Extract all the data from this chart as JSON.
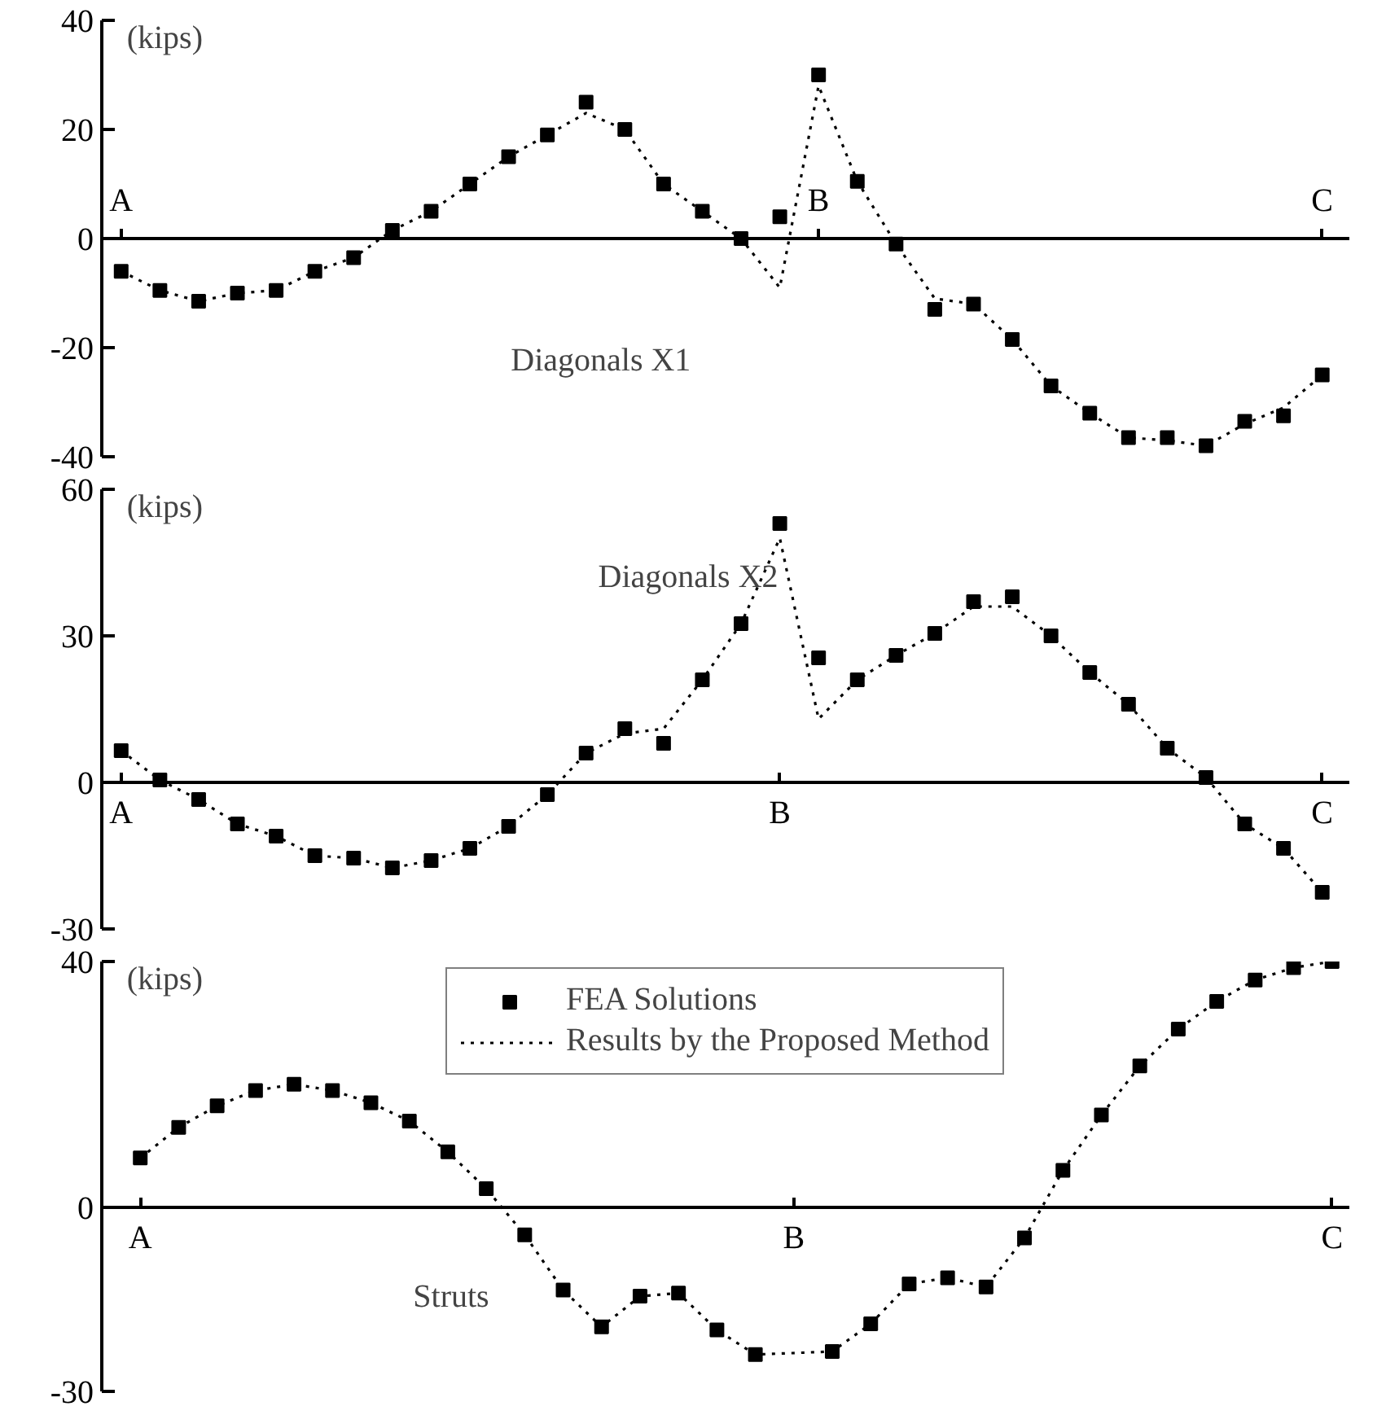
{
  "chart_data": [
    {
      "type": "line",
      "title": "Diagonals X1",
      "ylabel": "(kips)",
      "ylim": [
        -40,
        40
      ],
      "yticks": [
        -40,
        -20,
        0,
        20,
        40
      ],
      "grid": false,
      "legend": false,
      "categories": [
        "A",
        null,
        null,
        null,
        null,
        null,
        null,
        null,
        null,
        null,
        null,
        null,
        null,
        null,
        null,
        null,
        null,
        null,
        "B",
        null,
        null,
        null,
        null,
        null,
        null,
        null,
        null,
        null,
        null,
        null,
        null,
        "C"
      ],
      "series": [
        {
          "type": "scatter",
          "marker": "square",
          "color": "#000000",
          "values": [
            -6,
            -9.5,
            -11.5,
            -10,
            -9.5,
            -6,
            -3.5,
            1.5,
            5,
            10,
            15,
            19,
            25,
            20,
            10,
            5,
            0,
            4,
            30,
            10.5,
            -1,
            -13,
            -12,
            -18.5,
            -27,
            -32,
            -36.5,
            -36.5,
            -38,
            -33.5,
            -32.5,
            -25
          ]
        },
        {
          "line_style": "dotted",
          "marker": "none",
          "color": "#000000",
          "values": [
            -6,
            -9.5,
            -11.5,
            -10,
            -9.5,
            -6,
            -3.5,
            1.5,
            5,
            10,
            15,
            19,
            23,
            20,
            10,
            5,
            0,
            -9,
            28,
            10.5,
            -1,
            -11,
            -12,
            -18.5,
            -27,
            -32,
            -36.5,
            -37,
            -38,
            -34,
            -31,
            -25
          ]
        }
      ]
    },
    {
      "type": "line",
      "title": "Diagonals X2",
      "ylabel": "(kips)",
      "ylim": [
        -30,
        60
      ],
      "yticks": [
        -30,
        0,
        30,
        60
      ],
      "grid": false,
      "legend": false,
      "categories": [
        "A",
        null,
        null,
        null,
        null,
        null,
        null,
        null,
        null,
        null,
        null,
        null,
        null,
        null,
        null,
        null,
        null,
        "B",
        null,
        null,
        null,
        null,
        null,
        null,
        null,
        null,
        null,
        null,
        null,
        null,
        null,
        "C"
      ],
      "series": [
        {
          "type": "scatter",
          "marker": "square",
          "color": "#000000",
          "values": [
            6.5,
            0.5,
            -3.5,
            -8.5,
            -11,
            -15,
            -15.5,
            -17.5,
            -16,
            -13.5,
            -9,
            -2.5,
            6,
            11,
            8,
            21,
            32.5,
            53,
            25.5,
            21,
            26,
            30.5,
            37,
            38,
            30,
            22.5,
            16,
            7,
            1,
            -8.5,
            -13.5,
            -22.5
          ]
        },
        {
          "line_style": "dotted",
          "marker": "none",
          "color": "#000000",
          "values": [
            6.5,
            0.5,
            -3.5,
            -8.5,
            -11,
            -15,
            -15.5,
            -17.5,
            -16,
            -13.5,
            -9,
            -2.5,
            6,
            10,
            11,
            21,
            32.5,
            50,
            13,
            21,
            26,
            30.5,
            36,
            36,
            30,
            22.5,
            16,
            7,
            1,
            -8.5,
            -13.5,
            -22.5
          ]
        }
      ]
    },
    {
      "type": "line",
      "title": "Struts",
      "ylabel": "(kips)",
      "ylim": [
        -30,
        40
      ],
      "yticks": [
        -30,
        0,
        40
      ],
      "grid": false,
      "legend": "top",
      "categories": [
        "A",
        null,
        null,
        null,
        null,
        null,
        null,
        null,
        null,
        null,
        null,
        null,
        null,
        null,
        null,
        null,
        null,
        "B",
        null,
        null,
        null,
        null,
        null,
        null,
        null,
        null,
        null,
        null,
        null,
        null,
        null,
        "C"
      ],
      "series": [
        {
          "name": "FEA Solutions",
          "type": "scatter",
          "marker": "square",
          "color": "#000000",
          "values": [
            8,
            13,
            16.5,
            19,
            20,
            19,
            17,
            14,
            9,
            3,
            -4.5,
            -13.5,
            -19.5,
            -14.5,
            -14,
            -20,
            -24,
            null,
            -23.5,
            -19,
            -12.5,
            -11.5,
            -13,
            -5,
            6,
            15,
            23,
            29,
            33.5,
            37,
            39,
            40
          ]
        },
        {
          "name": "Results by the Proposed Method",
          "line_style": "dotted",
          "marker": "none",
          "color": "#000000",
          "values": [
            8,
            13,
            16.5,
            19,
            20,
            19,
            17,
            14,
            9,
            3,
            -4.5,
            -13.5,
            -19.5,
            -14.5,
            -14,
            -20,
            -24,
            null,
            -23.5,
            -19,
            -12.5,
            -11.5,
            -13,
            -5,
            6,
            15,
            23,
            29,
            33.5,
            37,
            39,
            40
          ]
        }
      ]
    }
  ]
}
